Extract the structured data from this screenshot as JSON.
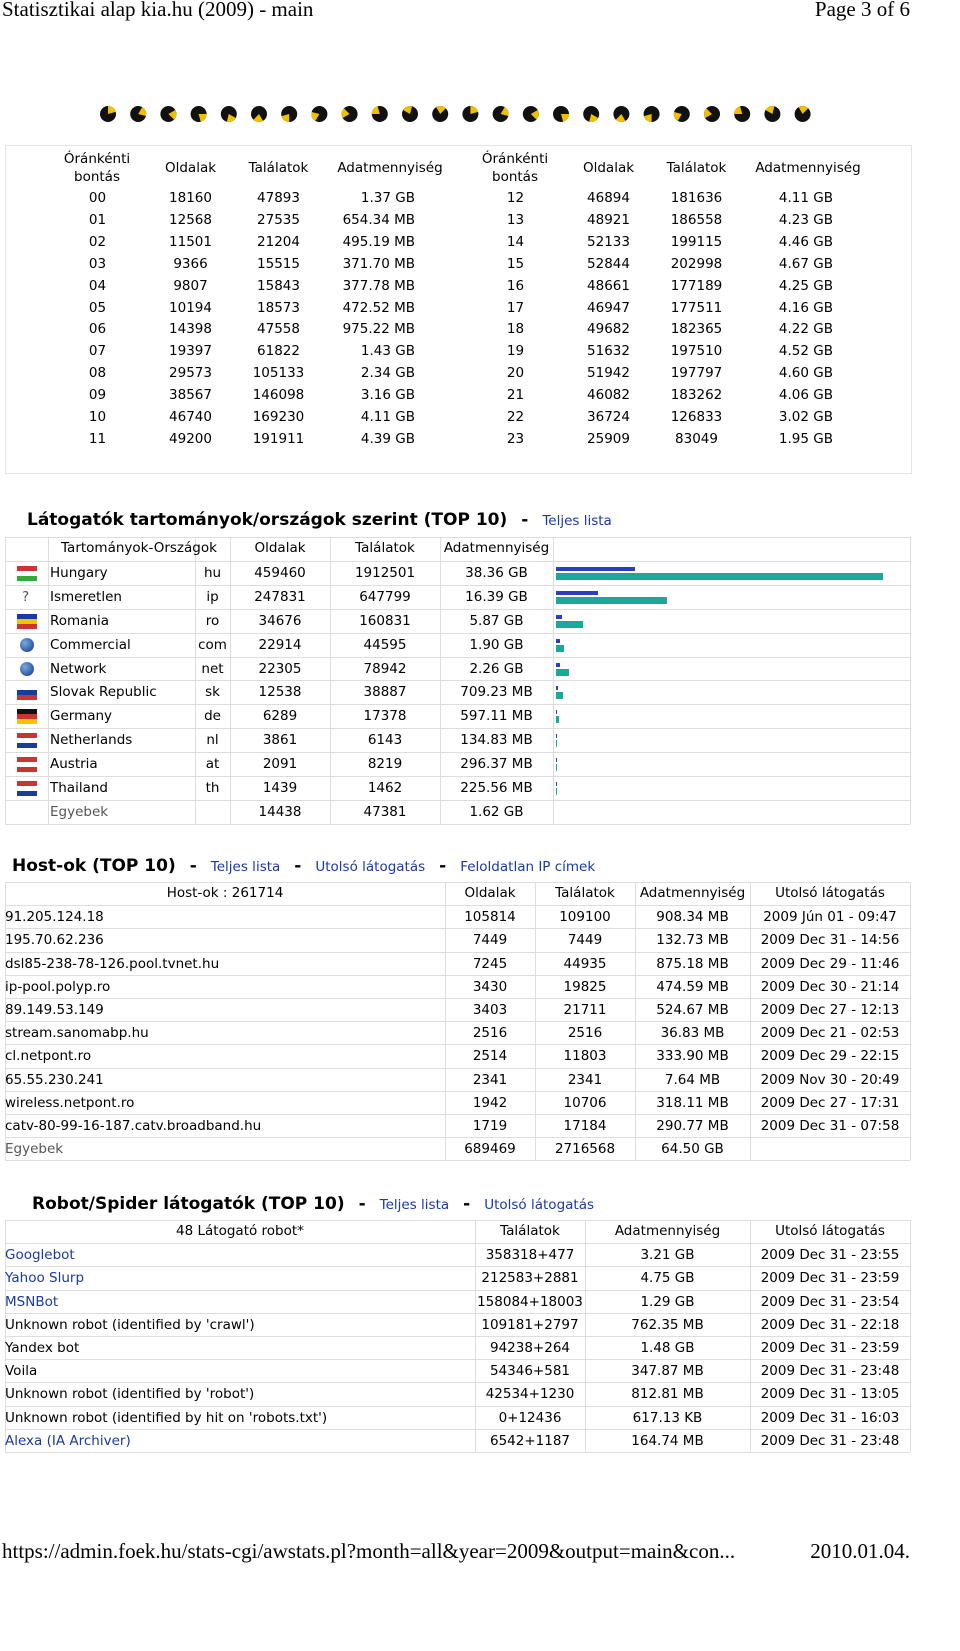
{
  "header": {
    "title": "Statisztikai alap kia.hu (2009) - main",
    "page": "Page 3 of 6"
  },
  "hourly": {
    "headers": [
      "Óránkénti bontás",
      "Oldalak",
      "Találatok",
      "Adatmennyiség"
    ],
    "rows": [
      [
        "00",
        18160,
        47893,
        "1.37 GB"
      ],
      [
        "01",
        12568,
        27535,
        "654.34 MB"
      ],
      [
        "02",
        11501,
        21204,
        "495.19 MB"
      ],
      [
        "03",
        9366,
        15515,
        "371.70 MB"
      ],
      [
        "04",
        9807,
        15843,
        "377.78 MB"
      ],
      [
        "05",
        10194,
        18573,
        "472.52 MB"
      ],
      [
        "06",
        14398,
        47558,
        "975.22 MB"
      ],
      [
        "07",
        19397,
        61822,
        "1.43 GB"
      ],
      [
        "08",
        29573,
        105133,
        "2.34 GB"
      ],
      [
        "09",
        38567,
        146098,
        "3.16 GB"
      ],
      [
        "10",
        46740,
        169230,
        "4.11 GB"
      ],
      [
        "11",
        49200,
        191911,
        "4.39 GB"
      ],
      [
        "12",
        46894,
        181636,
        "4.11 GB"
      ],
      [
        "13",
        48921,
        186558,
        "4.23 GB"
      ],
      [
        "14",
        52133,
        199115,
        "4.46 GB"
      ],
      [
        "15",
        52844,
        202998,
        "4.67 GB"
      ],
      [
        "16",
        48661,
        177189,
        "4.25 GB"
      ],
      [
        "17",
        46947,
        177511,
        "4.16 GB"
      ],
      [
        "18",
        49682,
        182365,
        "4.22 GB"
      ],
      [
        "19",
        51632,
        197510,
        "4.52 GB"
      ],
      [
        "20",
        51942,
        197797,
        "4.60 GB"
      ],
      [
        "21",
        46082,
        183262,
        "4.06 GB"
      ],
      [
        "22",
        36724,
        126833,
        "3.02 GB"
      ],
      [
        "23",
        25909,
        83049,
        "1.95 GB"
      ]
    ]
  },
  "sep": "-",
  "countries": {
    "title": "Látogatók tartományok/országok szerint (TOP 10)",
    "links": [
      "Teljes lista"
    ],
    "headers": [
      "Tartományok-Országok",
      "Oldalak",
      "Találatok",
      "Adatmennyiség"
    ],
    "rows": [
      [
        "Hungary",
        "hu",
        459460,
        1912501,
        "38.36 GB"
      ],
      [
        "Ismeretlen",
        "ip",
        247831,
        647799,
        "16.39 GB"
      ],
      [
        "Romania",
        "ro",
        34676,
        160831,
        "5.87 GB"
      ],
      [
        "Commercial",
        "com",
        22914,
        44595,
        "1.90 GB"
      ],
      [
        "Network",
        "net",
        22305,
        78942,
        "2.26 GB"
      ],
      [
        "Slovak Republic",
        "sk",
        12538,
        38887,
        "709.23 MB"
      ],
      [
        "Germany",
        "de",
        6289,
        17378,
        "597.11 MB"
      ],
      [
        "Netherlands",
        "nl",
        3861,
        6143,
        "134.83 MB"
      ],
      [
        "Austria",
        "at",
        2091,
        8219,
        "296.37 MB"
      ],
      [
        "Thailand",
        "th",
        1439,
        1462,
        "225.56 MB"
      ]
    ],
    "other": [
      "Egyebek",
      14438,
      47381,
      "1.62 GB"
    ],
    "bar_colors": [
      "#2a3fc0",
      "#1aa89a"
    ]
  },
  "hosts": {
    "title": "Host-ok (TOP 10)",
    "links": [
      "Teljes lista",
      "Utolsó látogatás",
      "Feloldatlan IP címek"
    ],
    "headers": [
      "Host-ok : 261714",
      "Oldalak",
      "Találatok",
      "Adatmennyiség",
      "Utolsó látogatás"
    ],
    "rows": [
      [
        "91.205.124.18",
        105814,
        109100,
        "908.34 MB",
        "2009 Jún 01 - 09:47"
      ],
      [
        "195.70.62.236",
        7449,
        7449,
        "132.73 MB",
        "2009 Dec 31 - 14:56"
      ],
      [
        "dsl85-238-78-126.pool.tvnet.hu",
        7245,
        44935,
        "875.18 MB",
        "2009 Dec 29 - 11:46"
      ],
      [
        "ip-pool.polyp.ro",
        3430,
        19825,
        "474.59 MB",
        "2009 Dec 30 - 21:14"
      ],
      [
        "89.149.53.149",
        3403,
        21711,
        "524.67 MB",
        "2009 Dec 27 - 12:13"
      ],
      [
        "stream.sanomabp.hu",
        2516,
        2516,
        "36.83 MB",
        "2009 Dec 21 - 02:53"
      ],
      [
        "cl.netpont.ro",
        2514,
        11803,
        "333.90 MB",
        "2009 Dec 29 - 22:15"
      ],
      [
        "65.55.230.241",
        2341,
        2341,
        "7.64 MB",
        "2009 Nov 30 - 20:49"
      ],
      [
        "wireless.netpont.ro",
        1942,
        10706,
        "318.11 MB",
        "2009 Dec 27 - 17:31"
      ],
      [
        "catv-80-99-16-187.catv.broadband.hu",
        1719,
        17184,
        "290.77 MB",
        "2009 Dec 31 - 07:58"
      ]
    ],
    "other": [
      "Egyebek",
      689469,
      2716568,
      "64.50 GB"
    ]
  },
  "robots": {
    "title": "Robot/Spider látogatók (TOP 10)",
    "links": [
      "Teljes lista",
      "Utolsó látogatás"
    ],
    "headers": [
      "48 Látogató robot*",
      "Találatok",
      "Adatmennyiség",
      "Utolsó látogatás"
    ],
    "rows": [
      [
        "Googlebot",
        "358318+477",
        "3.21 GB",
        "2009 Dec 31 - 23:55"
      ],
      [
        "Yahoo Slurp",
        "212583+2881",
        "4.75 GB",
        "2009 Dec 31 - 23:59"
      ],
      [
        "MSNBot",
        "158084+18003",
        "1.29 GB",
        "2009 Dec 31 - 23:54"
      ],
      [
        "Unknown robot (identified by 'crawl')",
        "109181+2797",
        "762.35 MB",
        "2009 Dec 31 - 22:18"
      ],
      [
        "Yandex bot",
        "94238+264",
        "1.48 GB",
        "2009 Dec 31 - 23:59"
      ],
      [
        "Voila",
        "54346+581",
        "347.87 MB",
        "2009 Dec 31 - 23:48"
      ],
      [
        "Unknown robot (identified by 'robot')",
        "42534+1230",
        "812.81 MB",
        "2009 Dec 31 - 13:05"
      ],
      [
        "Unknown robot (identified by hit on 'robots.txt')",
        "0+12436",
        "617.13 KB",
        "2009 Dec 31 - 16:03"
      ],
      [
        "Alexa (IA Archiver)",
        "6542+1187",
        "164.74 MB",
        "2009 Dec 31 - 23:48"
      ]
    ],
    "linked": [
      true,
      true,
      true,
      false,
      false,
      false,
      false,
      false,
      true
    ]
  },
  "footer": {
    "url": "https://admin.foek.hu/stats-cgi/awstats.pl?month=all&year=2009&output=main&con...",
    "date": "2010.01.04."
  }
}
